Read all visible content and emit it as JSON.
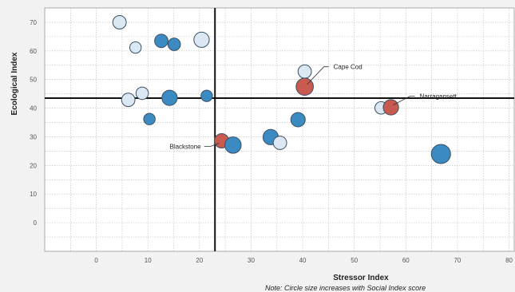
{
  "chart_data": {
    "type": "scatter",
    "xlabel": "Stressor Index",
    "ylabel": "Ecological Index",
    "note": "Note: Circle size increases with Social Index score",
    "xlim": [
      -10,
      81
    ],
    "ylim": [
      -10,
      75
    ],
    "x_ticks": [
      0,
      10,
      20,
      30,
      40,
      50,
      60,
      70,
      80
    ],
    "y_ticks": [
      0,
      10,
      20,
      30,
      40,
      50,
      60,
      70
    ],
    "grid": true,
    "reference_lines": {
      "x": 23,
      "y": 43.5
    },
    "colors": {
      "light": "#dbe7f3",
      "blue": "#3b8bc2",
      "red": "#c85a50",
      "edge": "#3a4f63"
    },
    "points": [
      {
        "x": 4.5,
        "y": 70,
        "size": 2,
        "color": "light"
      },
      {
        "x": 7.6,
        "y": 61.2,
        "size": 1,
        "color": "light"
      },
      {
        "x": 12.6,
        "y": 63.5,
        "size": 2,
        "color": "blue"
      },
      {
        "x": 15.1,
        "y": 62.3,
        "size": 1.5,
        "color": "blue"
      },
      {
        "x": 20.4,
        "y": 63.9,
        "size": 3,
        "color": "light"
      },
      {
        "x": 6.2,
        "y": 42.9,
        "size": 2,
        "color": "light"
      },
      {
        "x": 8.9,
        "y": 45.2,
        "size": 1.5,
        "color": "light"
      },
      {
        "x": 14.2,
        "y": 43.6,
        "size": 3,
        "color": "blue"
      },
      {
        "x": 21.4,
        "y": 44.3,
        "size": 1,
        "color": "blue"
      },
      {
        "x": 10.3,
        "y": 36.2,
        "size": 1,
        "color": "blue"
      },
      {
        "x": 24.3,
        "y": 28.6,
        "size": 2.5,
        "color": "red"
      },
      {
        "x": 26.5,
        "y": 27.1,
        "size": 3.5,
        "color": "blue"
      },
      {
        "x": 33.8,
        "y": 29.9,
        "size": 3,
        "color": "blue"
      },
      {
        "x": 35.6,
        "y": 27.9,
        "size": 2,
        "color": "light"
      },
      {
        "x": 39.1,
        "y": 36,
        "size": 2.5,
        "color": "blue"
      },
      {
        "x": 40.4,
        "y": 52.8,
        "size": 2,
        "color": "light"
      },
      {
        "x": 40.4,
        "y": 47.5,
        "size": 4,
        "color": "red"
      },
      {
        "x": 55.2,
        "y": 40.1,
        "size": 1.5,
        "color": "light"
      },
      {
        "x": 57.1,
        "y": 40.3,
        "size": 3,
        "color": "red"
      },
      {
        "x": 66.8,
        "y": 24,
        "size": 5,
        "color": "blue"
      }
    ],
    "annotations": [
      {
        "label": "Cape Cod",
        "x": 40.4,
        "y": 47.5
      },
      {
        "label": "Narragansett",
        "x": 57.1,
        "y": 40.3
      },
      {
        "label": "Blackstone",
        "x": 24.3,
        "y": 28.6
      }
    ]
  }
}
